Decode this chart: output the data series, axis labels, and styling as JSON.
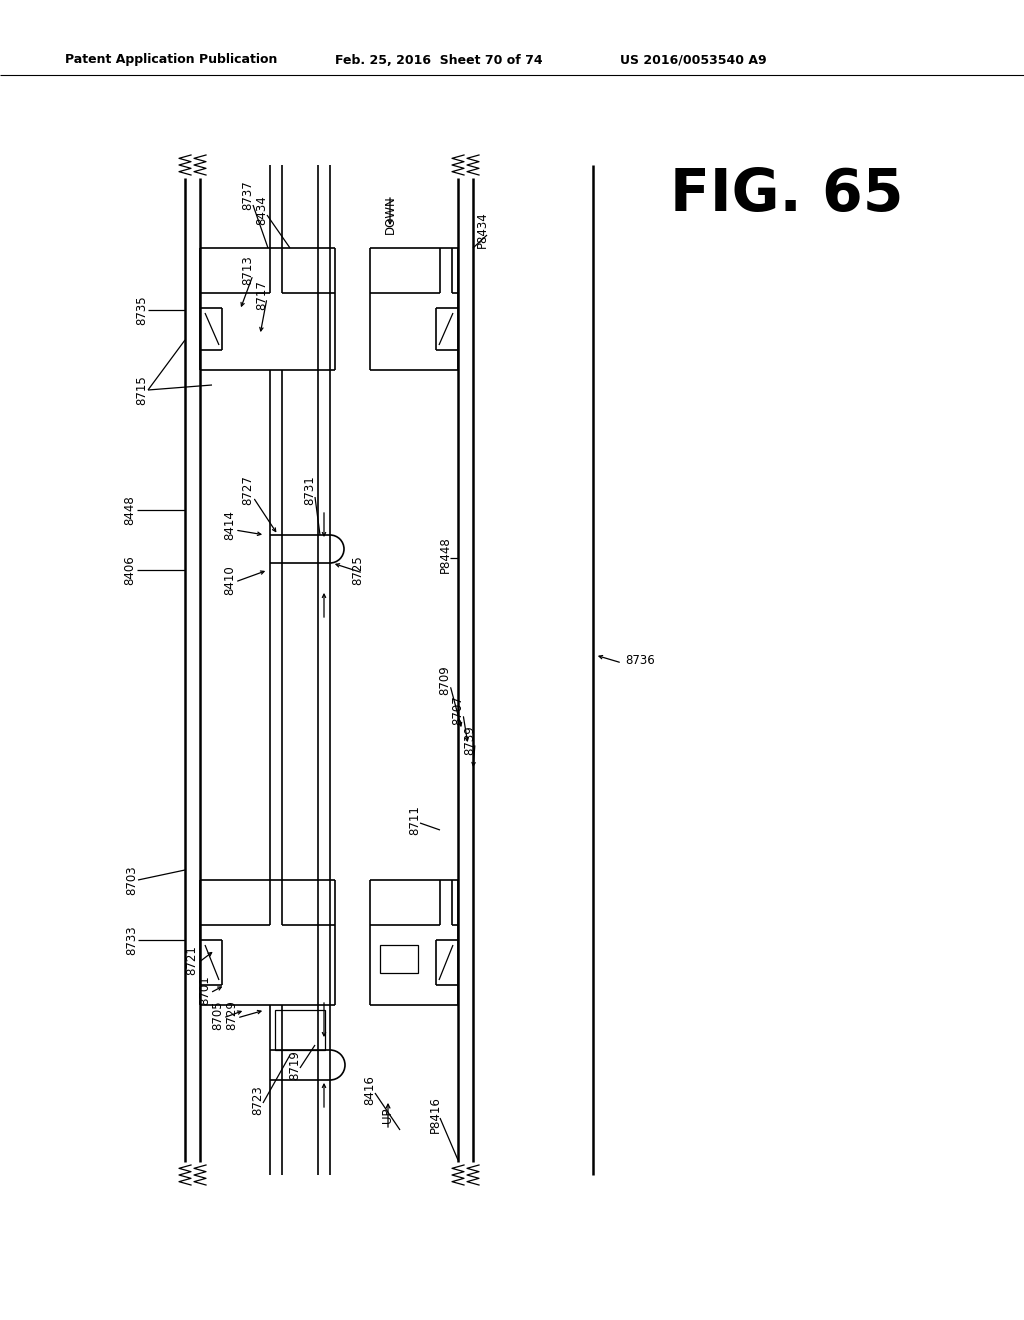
{
  "bg": "#ffffff",
  "fg": "#000000",
  "header_left": "Patent Application Publication",
  "header_mid": "Feb. 25, 2016  Sheet 70 of 74",
  "header_right": "US 2016/0053540 A9",
  "fig_label": "FIG. 65",
  "lw_wall": 1.8,
  "lw_inner": 1.2,
  "lw_thin": 0.9
}
